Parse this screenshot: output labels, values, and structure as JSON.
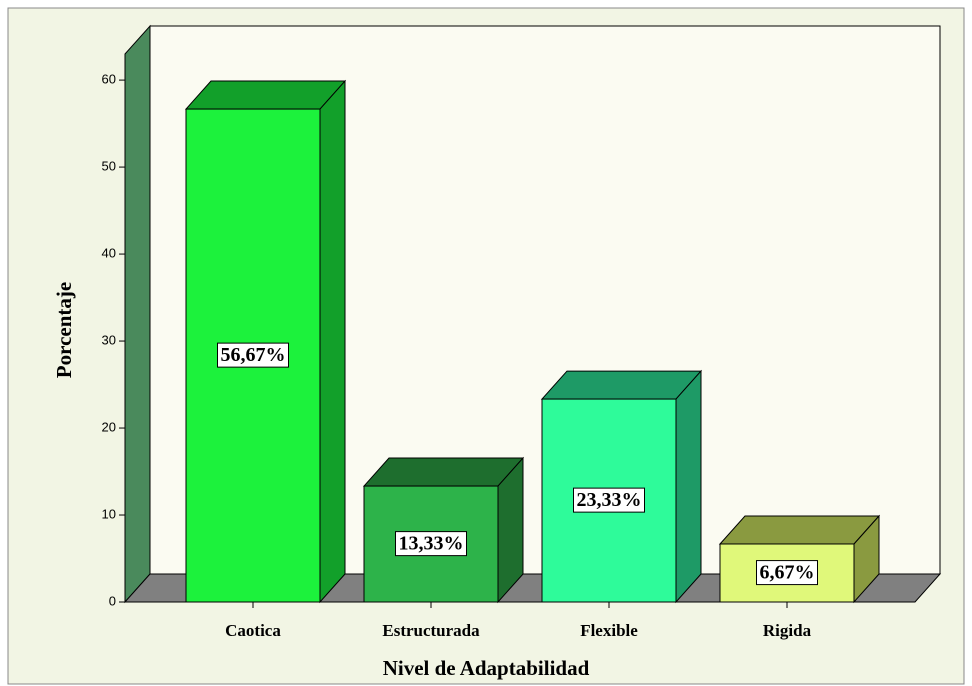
{
  "chart_data": {
    "type": "bar3d",
    "categories": [
      "Caotica",
      "Estructurada",
      "Flexible",
      "Rigida"
    ],
    "values": [
      56.67,
      13.33,
      23.33,
      6.67
    ],
    "value_labels": [
      "56,67%",
      "13,33%",
      "23,33%",
      "6,67%"
    ],
    "colors": [
      "#1cf23c",
      "#2db34a",
      "#2efb9a",
      "#e0f87a"
    ],
    "side_colors": [
      "#12a02a",
      "#1e6e2e",
      "#1e9a66",
      "#8a9a40"
    ],
    "x_label": "Nivel de Adaptabilidad",
    "y_label": "Porcentaje",
    "ylim": [
      0,
      63
    ],
    "yticks": [
      0,
      10,
      20,
      30,
      40,
      50,
      60
    ]
  }
}
